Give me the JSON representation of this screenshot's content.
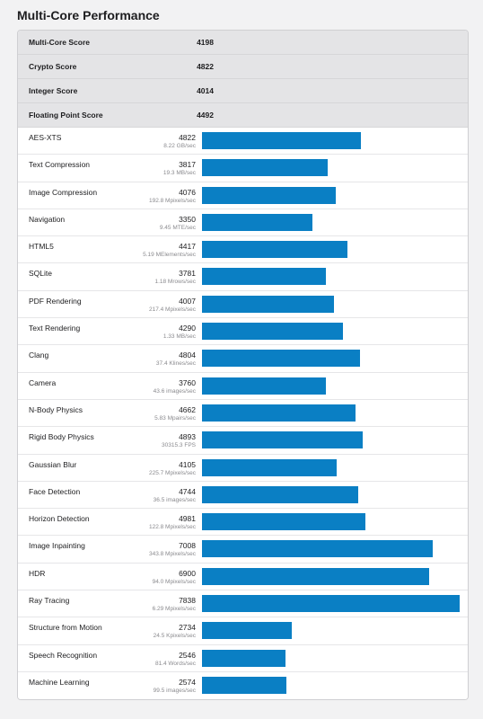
{
  "title": "Multi-Core Performance",
  "accent_color": "#0a7fc4",
  "bar_max": 7838,
  "summary": [
    {
      "label": "Multi-Core Score",
      "score": "4198"
    },
    {
      "label": "Crypto Score",
      "score": "4822"
    },
    {
      "label": "Integer Score",
      "score": "4014"
    },
    {
      "label": "Floating Point Score",
      "score": "4492"
    }
  ],
  "benchmarks": [
    {
      "name": "AES-XTS",
      "score": 4822,
      "unit": "8.22 GB/sec"
    },
    {
      "name": "Text Compression",
      "score": 3817,
      "unit": "19.3 MB/sec"
    },
    {
      "name": "Image Compression",
      "score": 4076,
      "unit": "192.8 Mpixels/sec"
    },
    {
      "name": "Navigation",
      "score": 3350,
      "unit": "9.45 MTE/sec"
    },
    {
      "name": "HTML5",
      "score": 4417,
      "unit": "5.19 MElements/sec"
    },
    {
      "name": "SQLite",
      "score": 3781,
      "unit": "1.18 Mrows/sec"
    },
    {
      "name": "PDF Rendering",
      "score": 4007,
      "unit": "217.4 Mpixels/sec"
    },
    {
      "name": "Text Rendering",
      "score": 4290,
      "unit": "1.33 MB/sec"
    },
    {
      "name": "Clang",
      "score": 4804,
      "unit": "37.4 Klines/sec"
    },
    {
      "name": "Camera",
      "score": 3760,
      "unit": "43.6 images/sec"
    },
    {
      "name": "N-Body Physics",
      "score": 4662,
      "unit": "5.83 Mpairs/sec"
    },
    {
      "name": "Rigid Body Physics",
      "score": 4893,
      "unit": "30315.3 FPS"
    },
    {
      "name": "Gaussian Blur",
      "score": 4105,
      "unit": "225.7 Mpixels/sec"
    },
    {
      "name": "Face Detection",
      "score": 4744,
      "unit": "36.5 images/sec"
    },
    {
      "name": "Horizon Detection",
      "score": 4981,
      "unit": "122.8 Mpixels/sec"
    },
    {
      "name": "Image Inpainting",
      "score": 7008,
      "unit": "343.8 Mpixels/sec"
    },
    {
      "name": "HDR",
      "score": 6900,
      "unit": "94.0 Mpixels/sec"
    },
    {
      "name": "Ray Tracing",
      "score": 7838,
      "unit": "6.29 Mpixels/sec"
    },
    {
      "name": "Structure from Motion",
      "score": 2734,
      "unit": "24.5 Kpixels/sec"
    },
    {
      "name": "Speech Recognition",
      "score": 2546,
      "unit": "81.4 Words/sec"
    },
    {
      "name": "Machine Learning",
      "score": 2574,
      "unit": "99.5 images/sec"
    }
  ]
}
